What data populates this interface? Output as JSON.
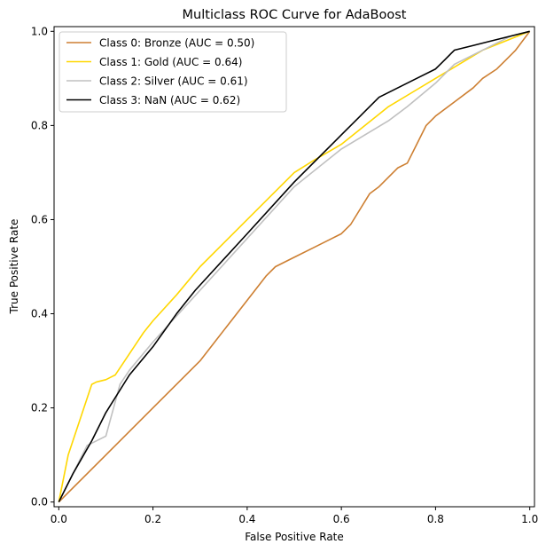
{
  "chart_data": {
    "type": "line",
    "title": "Multiclass ROC Curve for AdaBoost",
    "xlabel": "False Positive Rate",
    "ylabel": "True Positive Rate",
    "xlim": [
      -0.01,
      1.01
    ],
    "ylim": [
      -0.01,
      1.01
    ],
    "xticks": [
      "0.0",
      "0.2",
      "0.4",
      "0.6",
      "0.8",
      "1.0"
    ],
    "yticks": [
      "0.0",
      "0.2",
      "0.4",
      "0.6",
      "0.8",
      "1.0"
    ],
    "grid": false,
    "legend_position": "upper-left",
    "series": [
      {
        "name": "Class 0: Bronze (AUC = 0.50)",
        "color": "#cd7f32",
        "x": [
          0.0,
          0.1,
          0.2,
          0.3,
          0.37,
          0.44,
          0.46,
          0.5,
          0.54,
          0.58,
          0.6,
          0.62,
          0.66,
          0.68,
          0.7,
          0.72,
          0.74,
          0.76,
          0.78,
          0.8,
          0.84,
          0.88,
          0.9,
          0.93,
          0.95,
          0.97,
          1.0
        ],
        "y": [
          0.0,
          0.1,
          0.2,
          0.3,
          0.39,
          0.48,
          0.5,
          0.52,
          0.54,
          0.56,
          0.57,
          0.59,
          0.655,
          0.67,
          0.69,
          0.71,
          0.72,
          0.76,
          0.8,
          0.82,
          0.85,
          0.88,
          0.9,
          0.92,
          0.94,
          0.96,
          1.0
        ]
      },
      {
        "name": "Class 1: Gold (AUC = 0.64)",
        "color": "#ffd700",
        "x": [
          0.0,
          0.02,
          0.07,
          0.08,
          0.1,
          0.12,
          0.14,
          0.18,
          0.2,
          0.25,
          0.3,
          0.4,
          0.5,
          0.54,
          0.6,
          0.65,
          0.7,
          0.75,
          0.8,
          0.85,
          0.9,
          0.95,
          1.0
        ],
        "y": [
          0.0,
          0.1,
          0.25,
          0.255,
          0.26,
          0.27,
          0.3,
          0.36,
          0.385,
          0.44,
          0.5,
          0.6,
          0.7,
          0.725,
          0.76,
          0.8,
          0.84,
          0.87,
          0.9,
          0.93,
          0.96,
          0.98,
          1.0
        ]
      },
      {
        "name": "Class 2: Silver (AUC = 0.61)",
        "color": "#c0c0c0",
        "x": [
          0.0,
          0.03,
          0.06,
          0.1,
          0.13,
          0.15,
          0.2,
          0.3,
          0.4,
          0.5,
          0.6,
          0.7,
          0.74,
          0.8,
          0.84,
          0.88,
          0.92,
          0.96,
          1.0
        ],
        "y": [
          0.0,
          0.06,
          0.12,
          0.14,
          0.25,
          0.28,
          0.34,
          0.45,
          0.56,
          0.67,
          0.75,
          0.81,
          0.84,
          0.89,
          0.93,
          0.95,
          0.97,
          0.99,
          1.0
        ]
      },
      {
        "name": "Class 3: NaN (AUC = 0.62)",
        "color": "#000000",
        "x": [
          0.0,
          0.03,
          0.07,
          0.1,
          0.15,
          0.2,
          0.25,
          0.29,
          0.4,
          0.5,
          0.6,
          0.64,
          0.68,
          0.72,
          0.76,
          0.8,
          0.82,
          0.84,
          0.88,
          0.92,
          0.96,
          1.0
        ],
        "y": [
          0.0,
          0.06,
          0.13,
          0.19,
          0.27,
          0.33,
          0.4,
          0.45,
          0.57,
          0.68,
          0.78,
          0.82,
          0.86,
          0.88,
          0.9,
          0.92,
          0.94,
          0.96,
          0.97,
          0.98,
          0.99,
          1.0
        ]
      }
    ]
  }
}
